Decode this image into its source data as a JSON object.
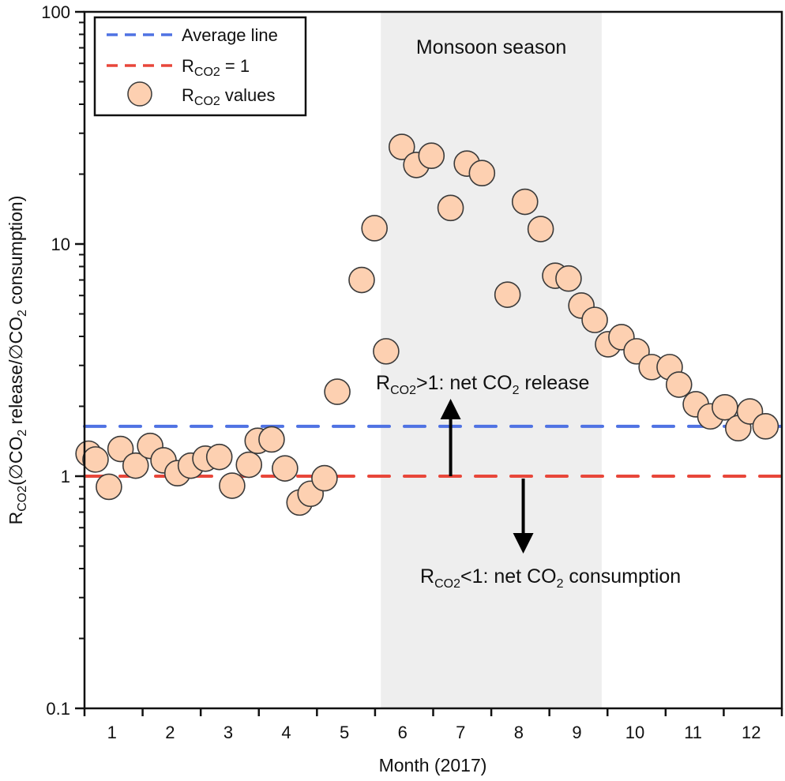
{
  "chart_data": {
    "type": "scatter",
    "title": "",
    "xlabel": "Month (2017)",
    "ylabel_parts": {
      "main": "R",
      "sub": "CO2",
      "rest1": "(∅CO",
      "sub2": "2",
      "rest2": " release/∅CO",
      "sub3": "2",
      "rest3": " consumption)"
    },
    "ylabel": "RCO2(∅CO2 release/∅CO2 consumption)",
    "yscale": "log",
    "ylim": [
      0.1,
      100
    ],
    "yticks": [
      0.1,
      1,
      10,
      100
    ],
    "ytick_labels": [
      "0.1",
      "1",
      "10",
      "100"
    ],
    "xlim": [
      0,
      12
    ],
    "xtick_labels": [
      "1",
      "2",
      "3",
      "4",
      "5",
      "6",
      "7",
      "8",
      "9",
      "10",
      "11",
      "12"
    ],
    "grid": false,
    "legend_position": "top-left",
    "shaded_region": {
      "label": "Monsoon season",
      "x_start": 5.1,
      "x_end": 8.9,
      "color": "#eeeeee"
    },
    "reference_lines": [
      {
        "name": "Average line",
        "y": 1.64,
        "color": "#4f72e3",
        "style": "dashed"
      },
      {
        "name": "RCO2 = 1",
        "y": 1.0,
        "color": "#e8473a",
        "style": "dashed"
      }
    ],
    "series": [
      {
        "name": "RCO2 values",
        "marker": "circle",
        "fill": "#fdd0b1",
        "stroke": "#3a3a3a",
        "x": [
          0.07,
          0.19,
          0.42,
          0.62,
          0.88,
          1.13,
          1.36,
          1.6,
          1.83,
          2.08,
          2.32,
          2.54,
          2.83,
          2.98,
          3.22,
          3.45,
          3.7,
          3.89,
          4.13,
          4.35,
          4.77,
          4.99,
          5.19,
          5.46,
          5.71,
          5.97,
          6.3,
          6.58,
          6.84,
          7.28,
          7.58,
          7.85,
          8.1,
          8.33,
          8.55,
          8.78,
          9.01,
          9.24,
          9.5,
          9.76,
          10.07,
          10.23,
          10.52,
          10.77,
          11.02,
          11.25,
          11.45,
          11.72
        ],
        "y": [
          1.25,
          1.18,
          0.9,
          1.31,
          1.11,
          1.35,
          1.17,
          1.03,
          1.11,
          1.19,
          1.21,
          0.91,
          1.12,
          1.42,
          1.44,
          1.08,
          0.77,
          0.84,
          0.98,
          2.31,
          7.0,
          11.7,
          3.45,
          26.2,
          21.9,
          24.0,
          14.3,
          22.2,
          20.2,
          6.05,
          15.2,
          11.6,
          7.3,
          7.1,
          5.43,
          4.71,
          3.7,
          3.97,
          3.45,
          2.95,
          2.95,
          2.48,
          2.04,
          1.81,
          1.98,
          1.61,
          1.9,
          1.64
        ]
      }
    ],
    "legend": [
      {
        "type": "line",
        "color": "#4f72e3",
        "label": "Average line",
        "label_parts": {
          "main": "Average line",
          "sub": "",
          "rest": ""
        }
      },
      {
        "type": "line",
        "color": "#e8473a",
        "label": "RCO2 = 1",
        "label_parts": {
          "main": "R",
          "sub": "CO2",
          "rest": " = 1"
        }
      },
      {
        "type": "marker",
        "color": "#fdd0b1",
        "label": "RCO2 values",
        "label_parts": {
          "main": "R",
          "sub": "CO2",
          "rest": " values"
        }
      }
    ],
    "annotations": [
      {
        "text": "RCO2>1: net CO2 release",
        "parts": {
          "a": "R",
          "b": "CO2",
          "c": ">1: net CO",
          "d": "2",
          "e": " release"
        },
        "arrow": "up",
        "arrow_x": 6.3
      },
      {
        "text": "RCO2<1: net CO2 consumption",
        "parts": {
          "a": "R",
          "b": "CO2",
          "c": "<1: net CO",
          "d": "2",
          "e": " consumption"
        },
        "arrow": "down",
        "arrow_x": 7.55
      }
    ]
  }
}
